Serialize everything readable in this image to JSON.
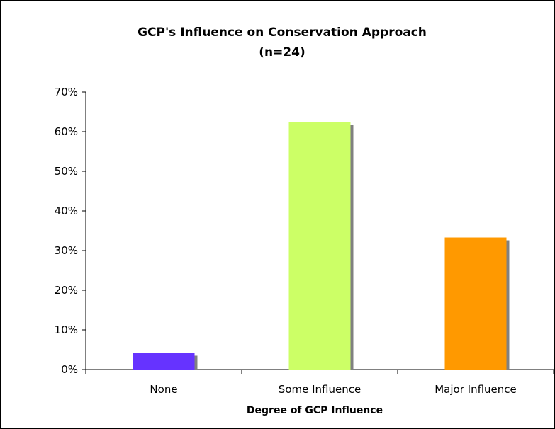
{
  "chart_data": {
    "type": "bar",
    "title": "GCP's Influence on Conservation Approach",
    "subtitle": "(n=24)",
    "xlabel": "Degree of GCP Influence",
    "ylabel": "",
    "categories": [
      "None",
      "Some Influence",
      "Major Influence"
    ],
    "values": [
      0.042,
      0.625,
      0.333
    ],
    "colors": [
      "#6633FF",
      "#CCFF66",
      "#FF9900"
    ],
    "shadow_color": "#808080",
    "ylim": [
      0,
      0.7
    ],
    "yticks": [
      0,
      0.1,
      0.2,
      0.3,
      0.4,
      0.5,
      0.6,
      0.7
    ],
    "ytick_labels": [
      "0%",
      "10%",
      "20%",
      "30%",
      "40%",
      "50%",
      "60%",
      "70%"
    ],
    "grid": false,
    "legend": "none"
  }
}
